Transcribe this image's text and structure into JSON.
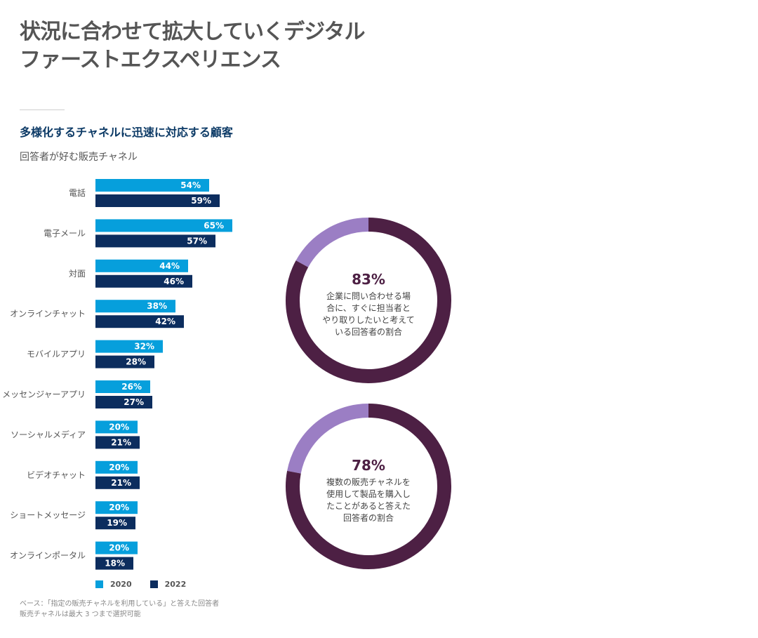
{
  "header": {
    "title_line1": "状況に合わせて拡大していくデジタル",
    "title_line2": "ファーストエクスペリエンス"
  },
  "section": {
    "subtitle": "多様化するチャネルに迅速に対応する顧客",
    "chart_label": "回答者が好む販売チャネル"
  },
  "colors": {
    "series_2020": "#069fdc",
    "series_2022": "#0c2d5e",
    "donut_dark": "#4d2044",
    "donut_light": "#9b7ec4",
    "donut_text": "#4d2044"
  },
  "chart_data": [
    {
      "type": "bar",
      "orientation": "horizontal",
      "categories": [
        "電話",
        "電子メール",
        "対面",
        "オンラインチャット",
        "モバイルアプリ",
        "メッセンジャーアプリ",
        "ソーシャルメディア",
        "ビデオチャット",
        "ショートメッセージ",
        "オンラインポータル"
      ],
      "series": [
        {
          "name": "2020",
          "values": [
            54,
            65,
            44,
            38,
            32,
            26,
            20,
            20,
            20,
            20
          ],
          "labels": [
            "54%",
            "65%",
            "44%",
            "38%",
            "32%",
            "26%",
            "20%",
            "20%",
            "20%",
            "20%"
          ]
        },
        {
          "name": "2022",
          "values": [
            59,
            57,
            46,
            42,
            28,
            27,
            21,
            21,
            19,
            18
          ],
          "labels": [
            "59%",
            "57%",
            "46%",
            "42%",
            "28%",
            "27%",
            "21%",
            "21%",
            "19%",
            "18%"
          ]
        }
      ],
      "legend": "bottom-left",
      "grid": false
    },
    {
      "type": "pie",
      "style": "donut",
      "donuts": [
        {
          "value": 83,
          "label": "83%",
          "text": [
            "企業に問い合わせる場",
            "合に、すぐに担当者と",
            "やり取りしたいと考えて",
            "いる回答者の割合"
          ]
        },
        {
          "value": 78,
          "label": "78%",
          "text": [
            "複数の販売チャネルを",
            "使用して製品を購入し",
            "たことがあると答えた",
            "回答者の割合"
          ]
        }
      ]
    }
  ],
  "legend": {
    "item_2020": "2020",
    "item_2022": "2022"
  },
  "notes": {
    "line1": "ベース：「指定の販売チャネルを利用している」と答えた回答者",
    "line2": "販売チャネルは最大 3 つまで選択可能"
  }
}
